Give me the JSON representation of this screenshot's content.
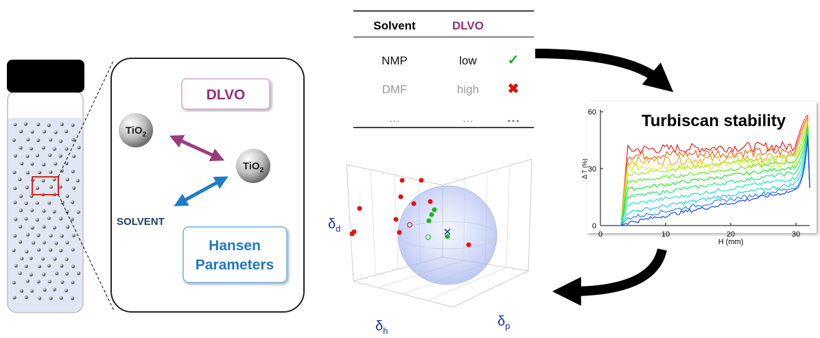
{
  "vial_panel": {
    "dlvo_label": "DLVO",
    "particle_a": {
      "text": "TiO",
      "sub": "2"
    },
    "particle_b": {
      "text": "TiO",
      "sub": "2"
    },
    "solvent_label": "SOLVENT",
    "hansen_label": [
      "Hansen",
      "Parameters"
    ]
  },
  "table": {
    "header": [
      "Solvent",
      "DLVO",
      ""
    ],
    "rows": [
      [
        "NMP",
        "low",
        "✓"
      ],
      [
        "DMF",
        "high",
        "✖"
      ],
      [
        "…",
        "…",
        "…"
      ]
    ]
  },
  "turbiscan": {
    "title": "Turbiscan stability",
    "y_label": "Δ T (%)",
    "x_label": "H (mm)",
    "y_ticks": [
      "0",
      "30",
      "60"
    ],
    "x_ticks": [
      "0",
      "10",
      "20",
      "30"
    ]
  },
  "hansen_plot": {
    "axis_d": {
      "symbol": "δ",
      "sub": "d"
    },
    "axis_h": {
      "symbol": "δ",
      "sub": "h"
    },
    "axis_p": {
      "symbol": "δ",
      "sub": "p"
    }
  }
}
